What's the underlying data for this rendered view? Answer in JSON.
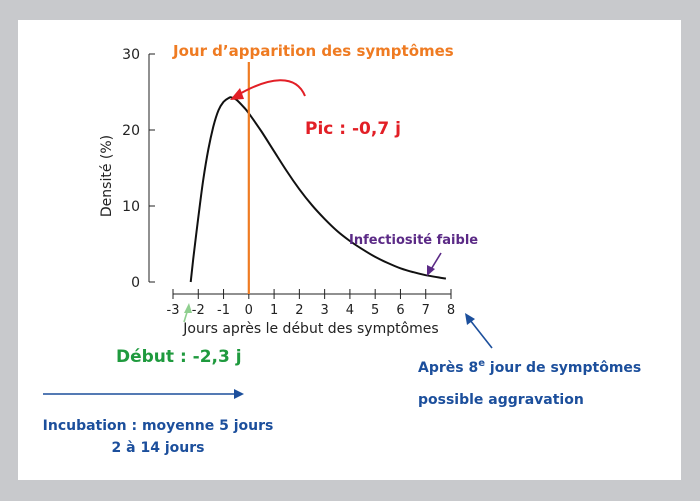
{
  "chart_data": {
    "type": "line",
    "title": "",
    "xlabel": "Jours après le début des symptômes",
    "ylabel": "Densité (%)",
    "xlim": [
      -3,
      8
    ],
    "ylim": [
      0,
      30
    ],
    "x_ticks": [
      -3,
      -2,
      -1,
      0,
      1,
      2,
      3,
      4,
      5,
      6,
      7,
      8
    ],
    "x_tick_labels": [
      "-3",
      "-2",
      "-1",
      "0",
      "1",
      "2",
      "3",
      "4",
      "5",
      "6",
      "7",
      "8"
    ],
    "y_ticks": [
      0,
      10,
      20,
      30
    ],
    "y_tick_labels": [
      "0",
      "10",
      "20",
      "30"
    ],
    "series": [
      {
        "color": "#111111",
        "points": [
          [
            -2.3,
            0.0
          ],
          [
            -2.2,
            3.0
          ],
          [
            -2.0,
            8.5
          ],
          [
            -1.8,
            13.5
          ],
          [
            -1.6,
            17.5
          ],
          [
            -1.4,
            20.5
          ],
          [
            -1.2,
            22.6
          ],
          [
            -1.0,
            23.7
          ],
          [
            -0.8,
            24.2
          ],
          [
            -0.7,
            24.3
          ],
          [
            -0.5,
            24.0
          ],
          [
            -0.2,
            23.0
          ],
          [
            0.0,
            22.2
          ],
          [
            0.5,
            19.8
          ],
          [
            1.0,
            17.2
          ],
          [
            1.5,
            14.6
          ],
          [
            2.0,
            12.2
          ],
          [
            2.5,
            10.1
          ],
          [
            3.0,
            8.3
          ],
          [
            3.5,
            6.7
          ],
          [
            4.0,
            5.4
          ],
          [
            4.5,
            4.3
          ],
          [
            5.0,
            3.3
          ],
          [
            5.5,
            2.5
          ],
          [
            6.0,
            1.8
          ],
          [
            6.5,
            1.3
          ],
          [
            7.0,
            0.9
          ],
          [
            7.5,
            0.6
          ],
          [
            7.8,
            0.45
          ]
        ]
      }
    ],
    "symptom_onset_line": {
      "x": 0,
      "label": "Jour d’apparition des symptômes",
      "color": "#ef7b22"
    },
    "annotations": {
      "peak": {
        "text": "Pic : -0,7 j",
        "x": -0.7,
        "color": "#e21f26"
      },
      "infectiosity": {
        "text": "Infectiosité faible",
        "color": "#5b2a86"
      },
      "start": {
        "text": "Début : -2,3 j",
        "x": -2.3,
        "color": "#1f9a3e"
      },
      "after8_line1_prefix": "Après 8",
      "after8_sup": "e",
      "after8_line1_suffix": " jour de symptômes",
      "after8_line2": "possible aggravation",
      "after8_color": "#1c4f9c",
      "incubation_line1": "Incubation : moyenne 5 jours",
      "incubation_line2": "2 à 14 jours",
      "incubation_color": "#1c4f9c"
    },
    "colors": {
      "background": "#c8c9cc",
      "panel": "#ffffff",
      "curve": "#111111",
      "onset": "#ef7b22"
    }
  }
}
